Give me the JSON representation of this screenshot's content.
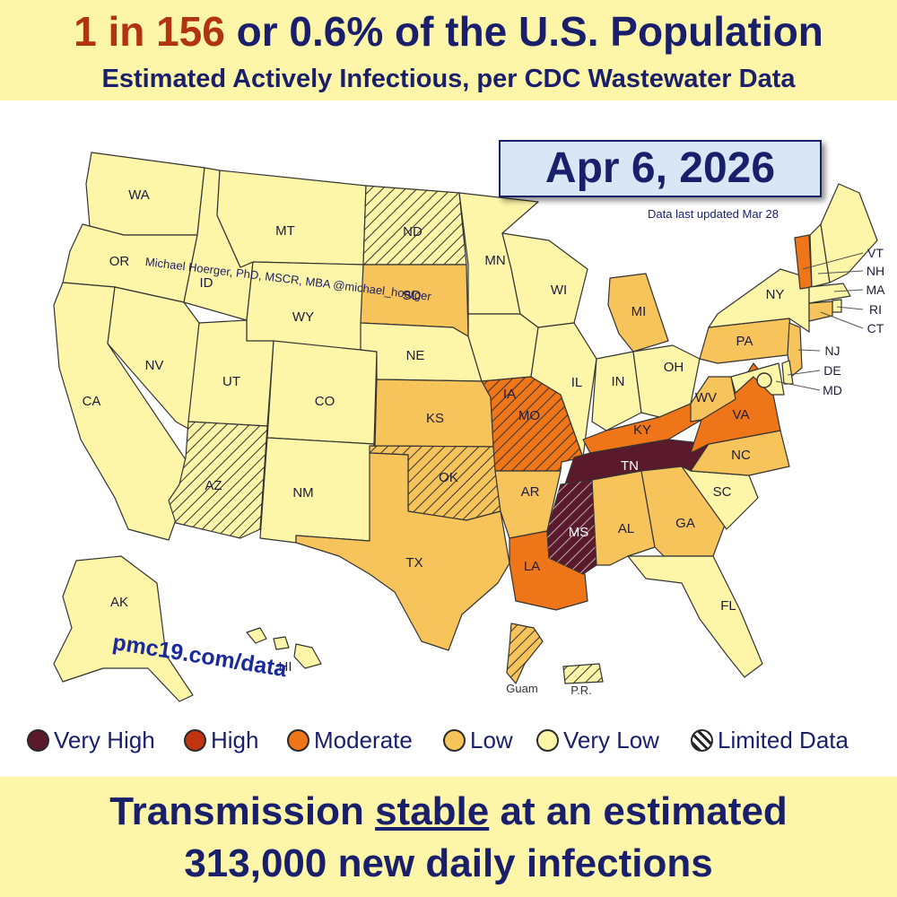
{
  "header": {
    "headline_accent": "1 in 156",
    "headline_rest": " or 0.6% of the U.S. Population",
    "subhead": "Estimated Actively Infectious, per CDC Wastewater Data"
  },
  "date": "Apr 6, 2026",
  "updated": "Data last updated Mar 28",
  "credit": "Michael Hoerger, PhD, MSCR, MBA  @michael_hoerger",
  "url": "pmc19.com/data",
  "colors": {
    "very_high": "#5a1a2c",
    "high": "#c0340f",
    "moderate": "#ee7618",
    "low": "#f7c45c",
    "very_low": "#fdf5a8",
    "border": "#333333",
    "text": "#1a1f6b"
  },
  "legend": [
    {
      "label": "Very High",
      "level": "very_high"
    },
    {
      "label": "High",
      "level": "high"
    },
    {
      "label": "Moderate",
      "level": "moderate"
    },
    {
      "label": "Low",
      "level": "low"
    },
    {
      "label": "Very Low",
      "level": "very_low"
    },
    {
      "label": "Limited Data",
      "level": "limited"
    }
  ],
  "states": {
    "WA": {
      "level": "very_low"
    },
    "OR": {
      "level": "very_low"
    },
    "CA": {
      "level": "very_low"
    },
    "ID": {
      "level": "very_low"
    },
    "NV": {
      "level": "very_low"
    },
    "MT": {
      "level": "very_low"
    },
    "WY": {
      "level": "very_low"
    },
    "UT": {
      "level": "very_low"
    },
    "AZ": {
      "level": "very_low",
      "limited": true
    },
    "CO": {
      "level": "very_low"
    },
    "NM": {
      "level": "very_low"
    },
    "ND": {
      "level": "very_low",
      "limited": true
    },
    "SD": {
      "level": "low"
    },
    "NE": {
      "level": "very_low"
    },
    "KS": {
      "level": "low"
    },
    "OK": {
      "level": "low",
      "limited": true
    },
    "TX": {
      "level": "low"
    },
    "MN": {
      "level": "very_low"
    },
    "IA": {
      "level": "very_low"
    },
    "MO": {
      "level": "moderate",
      "limited": true
    },
    "AR": {
      "level": "low"
    },
    "LA": {
      "level": "moderate"
    },
    "WI": {
      "level": "very_low"
    },
    "IL": {
      "level": "very_low"
    },
    "MI": {
      "level": "low"
    },
    "IN": {
      "level": "very_low"
    },
    "OH": {
      "level": "very_low"
    },
    "KY": {
      "level": "moderate"
    },
    "TN": {
      "level": "very_high"
    },
    "MS": {
      "level": "very_high",
      "limited": true
    },
    "AL": {
      "level": "low"
    },
    "GA": {
      "level": "low"
    },
    "FL": {
      "level": "very_low"
    },
    "SC": {
      "level": "very_low"
    },
    "NC": {
      "level": "low"
    },
    "VA": {
      "level": "moderate"
    },
    "WV": {
      "level": "low"
    },
    "PA": {
      "level": "low"
    },
    "NY": {
      "level": "very_low"
    },
    "VT": {
      "level": "moderate"
    },
    "NH": {
      "level": "very_low"
    },
    "ME": {
      "level": "very_low"
    },
    "MA": {
      "level": "very_low"
    },
    "RI": {
      "level": "very_low"
    },
    "CT": {
      "level": "low"
    },
    "NJ": {
      "level": "low"
    },
    "DE": {
      "level": "very_low"
    },
    "MD": {
      "level": "very_low"
    },
    "AK": {
      "level": "very_low"
    },
    "HI": {
      "level": "very_low"
    }
  },
  "territories": {
    "Guam": {
      "level": "low",
      "limited": true
    },
    "P.R.": {
      "level": "very_low",
      "limited": true
    }
  },
  "footer": {
    "line1_pre": "Transmission ",
    "line1_trend": "stable",
    "line1_post": " at an estimated",
    "line2": "313,000 new daily infections"
  }
}
